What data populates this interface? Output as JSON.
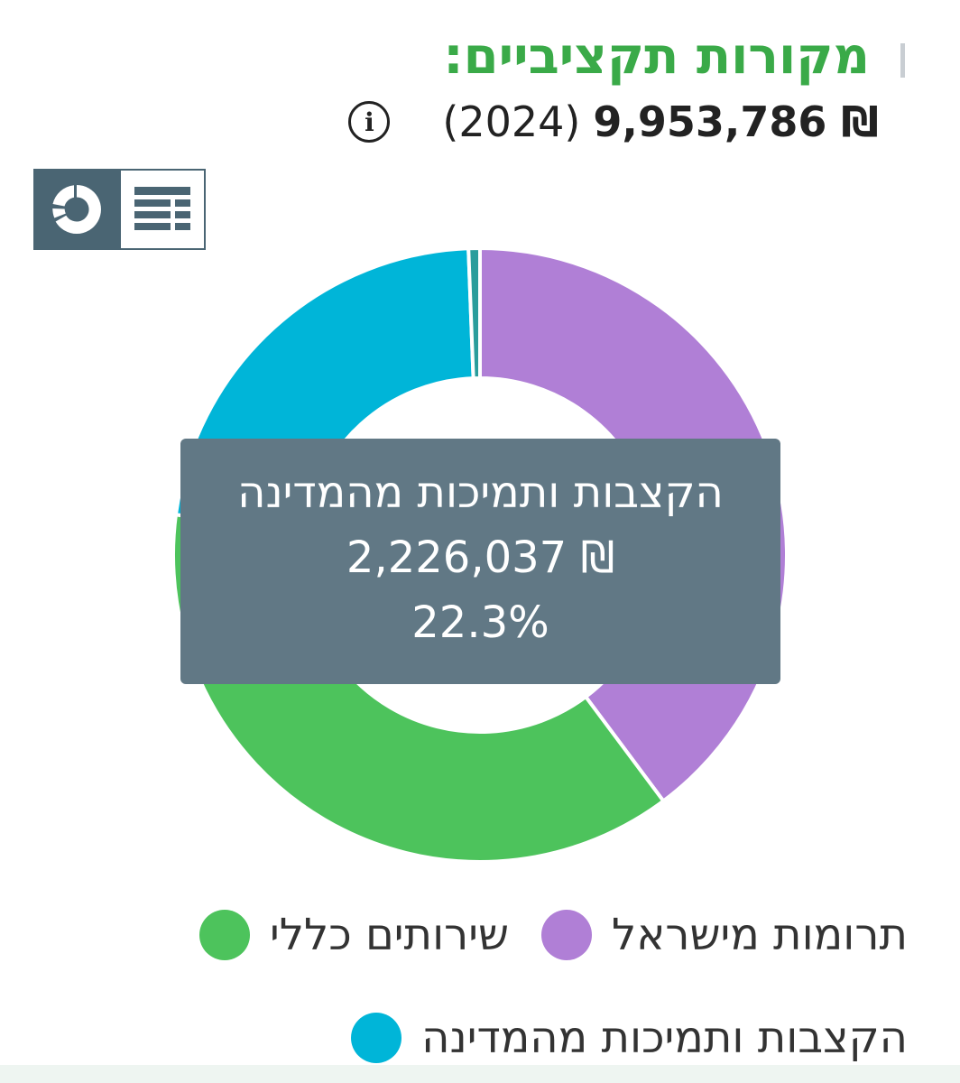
{
  "header": {
    "title": "מקורות תקציביים:",
    "title_color": "#3aaa48",
    "total_amount": "9,953,786 ₪",
    "total_year": "(2024)",
    "info_icon": "info-icon"
  },
  "view_toggle": {
    "donut_icon": "donut-chart-icon",
    "table_icon": "table-view-icon",
    "active": "donut"
  },
  "tooltip": {
    "label": "הקצבות ותמיכות מהמדינה",
    "amount": "2,226,037 ₪",
    "percent": "22.3%"
  },
  "chart_data": {
    "type": "pie",
    "start_angle_deg": 0,
    "direction": "clockwise",
    "slices": [
      {
        "name": "תרומות מישראל",
        "percent": 39.8,
        "color": "#b07fd6"
      },
      {
        "name": "שירותים כלליים",
        "percent": 37.3,
        "color": "#4dc35c"
      },
      {
        "name": "הקצבות ותמיכות מהמדינה",
        "percent": 22.3,
        "color": "#00b5d8"
      },
      {
        "name": "",
        "percent": 0.6,
        "color": "#2a9d9c"
      }
    ]
  },
  "legend": [
    {
      "label": "תרומות מישראל",
      "color": "#b07fd6"
    },
    {
      "label": "שירותים כללי",
      "color": "#4dc35c"
    },
    {
      "label": "הקצבות ותמיכות מהמדינה",
      "color": "#00b5d8"
    }
  ]
}
